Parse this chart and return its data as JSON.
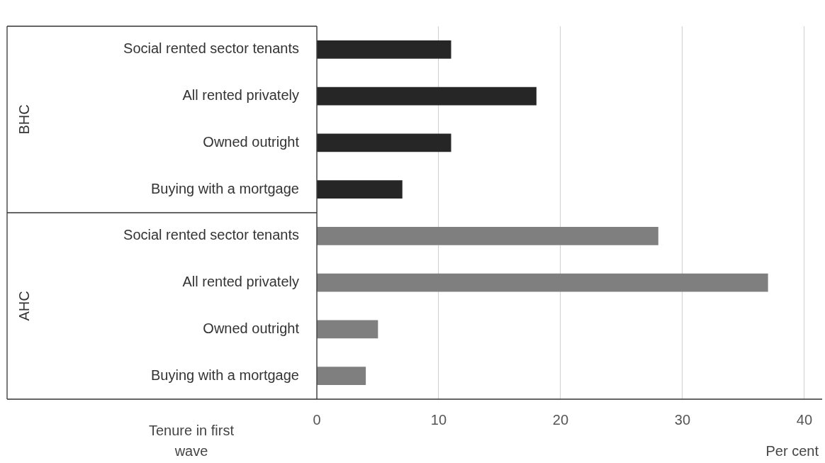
{
  "chart_data": {
    "type": "bar",
    "orientation": "horizontal",
    "categories": [
      "Social rented sector tenants",
      "All rented privately",
      "Owned outright",
      "Buying with a mortgage",
      "Social rented sector tenants",
      "All rented privately",
      "Owned outright",
      "Buying with a mortgage"
    ],
    "values": [
      11,
      18,
      11,
      7,
      28,
      37,
      5,
      4
    ],
    "colors": [
      "#262626",
      "#262626",
      "#262626",
      "#262626",
      "#7f7f7f",
      "#7f7f7f",
      "#7f7f7f",
      "#7f7f7f"
    ],
    "annotations": [
      "BHC",
      "AHC"
    ],
    "xlabel": "Per cent",
    "ylabel": "Tenure in first wave",
    "xlim": [
      0,
      40
    ],
    "xticks": [
      0,
      10,
      20,
      30,
      40
    ],
    "grid": "x",
    "legend": false
  }
}
